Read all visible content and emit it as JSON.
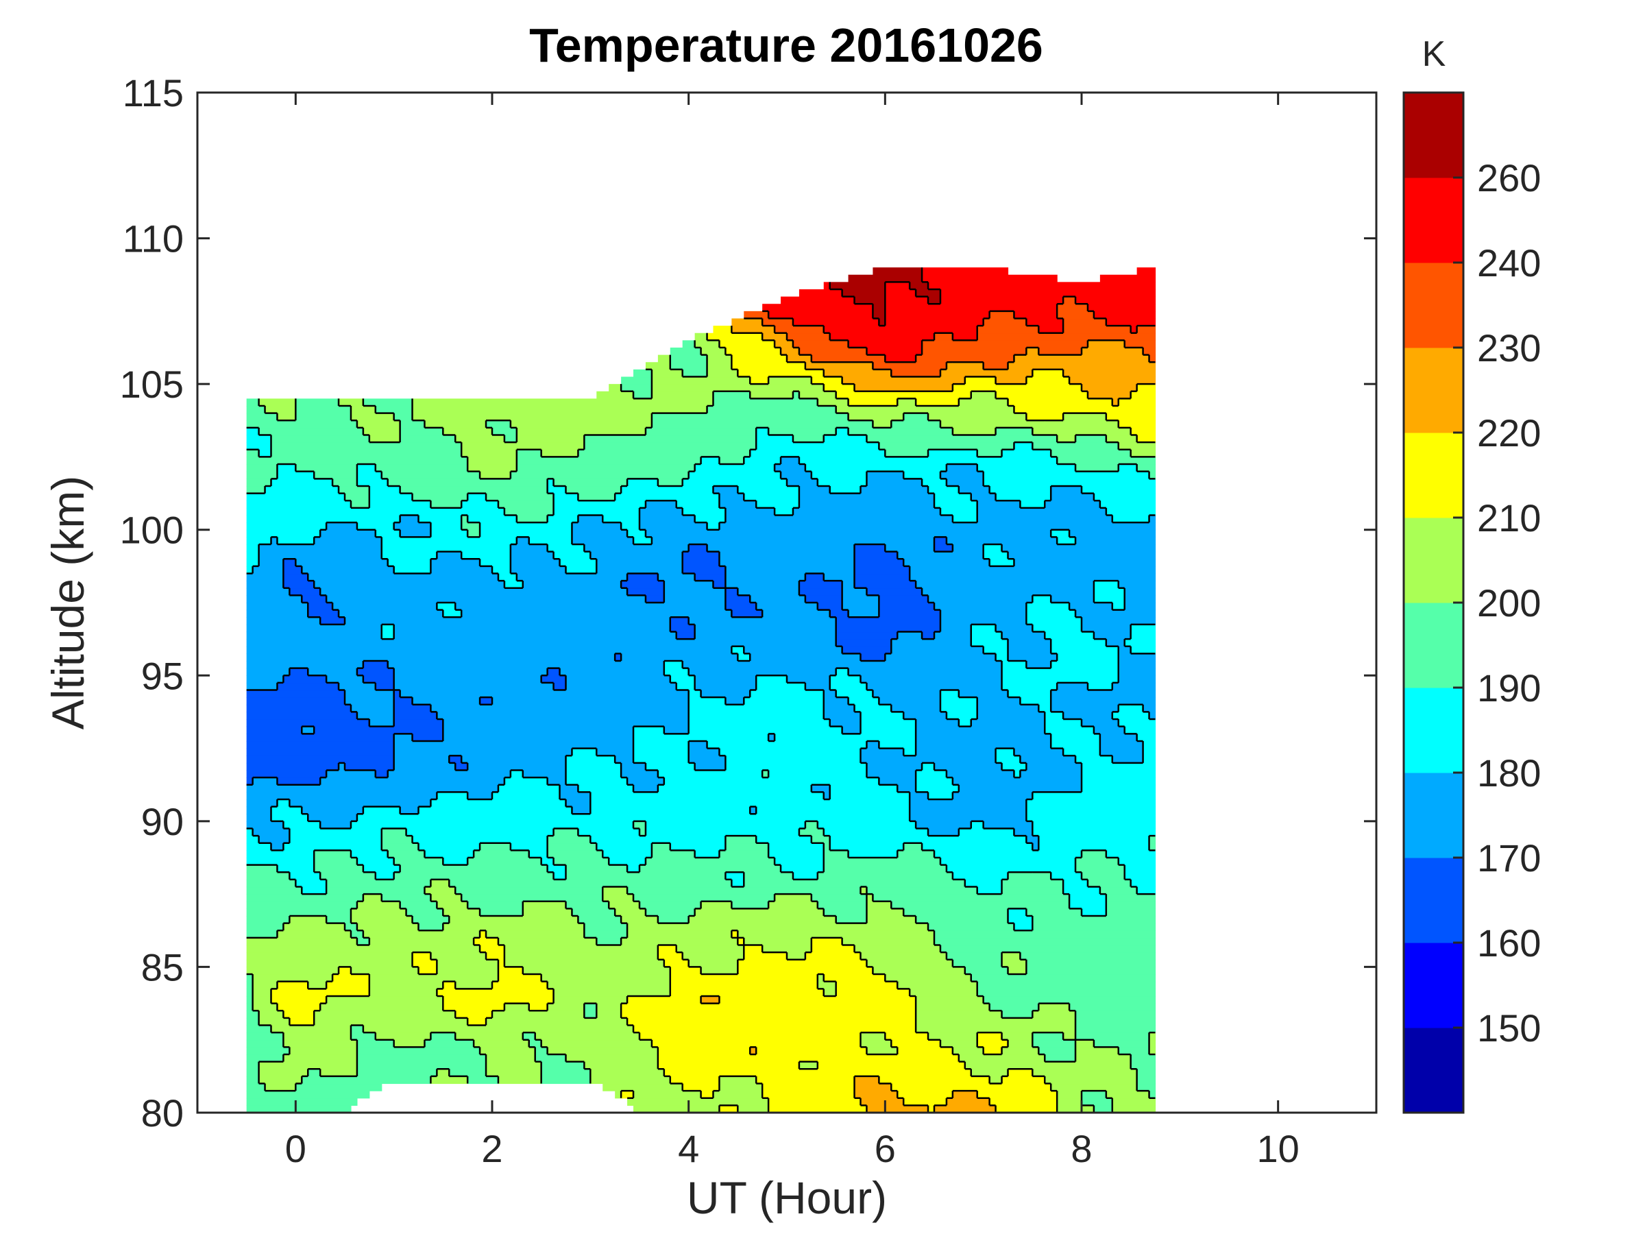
{
  "chart_data": {
    "type": "heatmap",
    "subtype": "filled-contour",
    "title": "Temperature 20161026",
    "xlabel": "UT (Hour)",
    "ylabel": "Altitude (km)",
    "xlim": [
      -1,
      11
    ],
    "ylim": [
      80,
      115
    ],
    "xticks": [
      "0",
      "2",
      "4",
      "6",
      "8",
      "10"
    ],
    "xtick_values": [
      0,
      2,
      4,
      6,
      8,
      10
    ],
    "yticks": [
      "80",
      "85",
      "90",
      "95",
      "100",
      "105",
      "110",
      "115"
    ],
    "ytick_values": [
      80,
      85,
      90,
      95,
      100,
      105,
      110,
      115
    ],
    "colorbar": {
      "unit": "K",
      "labels": [
        "150",
        "160",
        "170",
        "180",
        "190",
        "200",
        "210",
        "220",
        "230",
        "240",
        "260"
      ],
      "bin_edges": [
        150,
        160,
        170,
        180,
        190,
        200,
        210,
        220,
        230,
        240,
        260
      ],
      "colors": [
        "#0000AA",
        "#0000FF",
        "#0055FF",
        "#00AAFF",
        "#00FFFF",
        "#55FFAA",
        "#AAFF55",
        "#FFFF00",
        "#FFAA00",
        "#FF5500",
        "#FF0000",
        "#AA0000"
      ]
    },
    "x": [
      -0.5,
      0,
      1,
      2,
      3,
      4,
      5,
      6,
      7,
      8,
      8.75
    ],
    "altitude": [
      80,
      82,
      84,
      86,
      88,
      90,
      92,
      94,
      96,
      98,
      100,
      102,
      104,
      106,
      108
    ],
    "data_top_km": [
      104.5,
      104.5,
      104.5,
      104.5,
      104.5,
      106.5,
      108,
      109,
      109,
      108.5,
      109
    ],
    "temperature": [
      [
        195,
        195,
        null,
        null,
        null,
        205,
        212,
        225,
        222,
        205,
        200
      ],
      [
        195,
        205,
        195,
        200,
        200,
        215,
        215,
        212,
        210,
        200,
        200
      ],
      [
        200,
        215,
        205,
        215,
        205,
        216,
        215,
        215,
        200,
        195,
        195
      ],
      [
        200,
        202,
        205,
        206,
        202,
        205,
        210,
        206,
        195,
        195,
        195
      ],
      [
        190,
        190,
        195,
        195,
        195,
        195,
        192,
        195,
        190,
        190,
        190
      ],
      [
        180,
        180,
        185,
        185,
        185,
        185,
        185,
        185,
        175,
        185,
        185
      ],
      [
        165,
        165,
        168,
        175,
        180,
        182,
        186,
        180,
        175,
        180,
        185
      ],
      [
        165,
        165,
        170,
        175,
        172,
        180,
        185,
        180,
        178,
        180,
        175
      ],
      [
        180,
        175,
        175,
        175,
        175,
        175,
        175,
        168,
        178,
        185,
        178
      ],
      [
        178,
        168,
        178,
        175,
        175,
        168,
        175,
        165,
        175,
        178,
        175
      ],
      [
        185,
        180,
        180,
        188,
        180,
        175,
        175,
        172,
        178,
        175,
        175
      ],
      [
        190,
        190,
        195,
        200,
        195,
        190,
        182,
        180,
        182,
        185,
        195
      ],
      [
        195,
        200,
        200,
        205,
        205,
        200,
        192,
        205,
        205,
        212,
        218
      ],
      [
        null,
        null,
        null,
        null,
        null,
        200,
        222,
        245,
        232,
        228,
        228
      ],
      [
        null,
        null,
        null,
        null,
        null,
        null,
        250,
        265,
        250,
        245,
        252
      ]
    ]
  }
}
